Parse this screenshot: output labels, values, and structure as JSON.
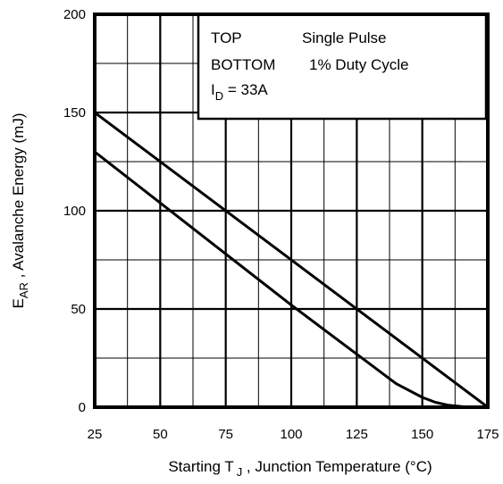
{
  "chart_data": {
    "type": "line",
    "xlabel_prefix": "Starting T",
    "xlabel_sub": "J",
    "xlabel_suffix": " , Junction Temperature (°C)",
    "ylabel_prefix": "E",
    "ylabel_sub": "AR",
    "ylabel_suffix": " , Avalanche Energy (mJ)",
    "xlim": [
      25,
      175
    ],
    "ylim": [
      0,
      200
    ],
    "x_ticks": [
      "25",
      "50",
      "75",
      "100",
      "125",
      "150",
      "175"
    ],
    "y_ticks": [
      "0",
      "50",
      "100",
      "150",
      "200"
    ],
    "grid": true,
    "legend": {
      "position": "top-right",
      "line1_a": "TOP",
      "line1_b": "Single Pulse",
      "line2_a": "BOTTOM",
      "line2_b": "1% Duty Cycle",
      "line3_a": "I",
      "line3_sub": "D",
      "line3_b": " = 33A"
    },
    "series": [
      {
        "x": [
          25,
          175
        ],
        "y": [
          150,
          0
        ]
      },
      {
        "x": [
          25,
          50,
          75,
          100,
          125,
          140,
          150,
          155,
          160,
          165,
          170,
          175
        ],
        "y": [
          130,
          104,
          78,
          52,
          27,
          12,
          5,
          2.5,
          1,
          0.3,
          0,
          0
        ]
      }
    ]
  }
}
